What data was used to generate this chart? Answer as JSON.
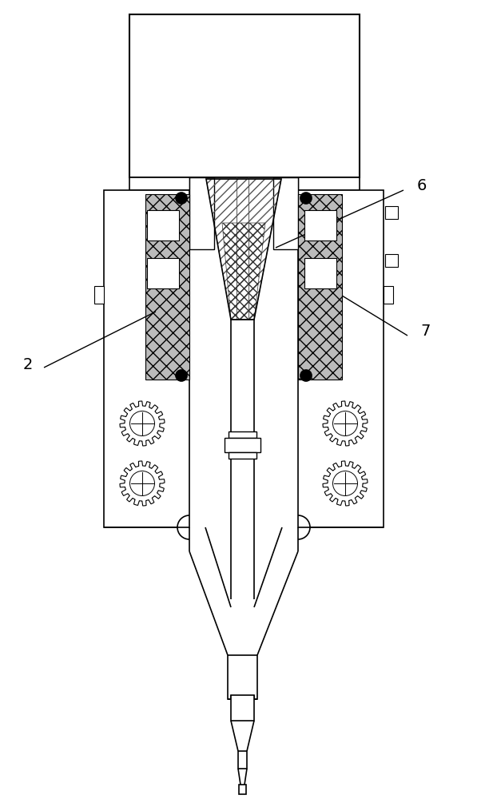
{
  "bg_color": "#ffffff",
  "line_color": "#000000",
  "label_2": "2",
  "label_6": "6",
  "label_7": "7",
  "figsize": [
    6.07,
    10.0
  ],
  "dpi": 100
}
